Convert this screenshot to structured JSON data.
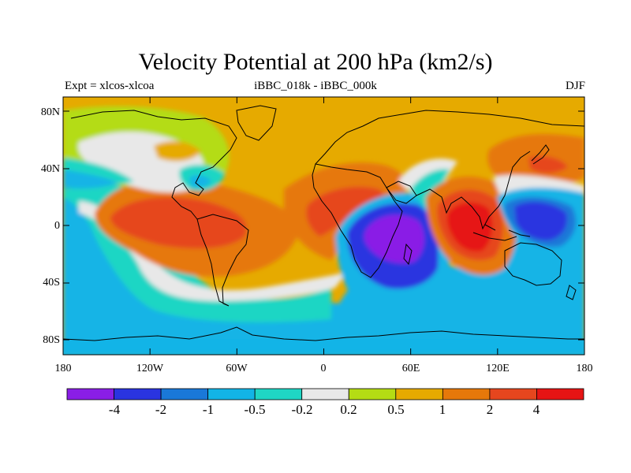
{
  "title": "Velocity Potential at 200 hPa (km2/s)",
  "subtitle_left": "Expt = xlcos-xlcoa",
  "subtitle_center": "iBBC_018k - iBBC_000k",
  "subtitle_right": "DJF",
  "lat_ticks": [
    "80N",
    "40N",
    "0",
    "40S",
    "80S"
  ],
  "lon_ticks": [
    "180",
    "120W",
    "60W",
    "0",
    "60E",
    "120E",
    "180"
  ],
  "colorbar": {
    "colors": [
      "#8a1ee6",
      "#2a34e0",
      "#1a78d8",
      "#12b4e6",
      "#1fd6c4",
      "#e8e8e8",
      "#b4dc14",
      "#e6aa00",
      "#e6780a",
      "#e6461e",
      "#e61414"
    ],
    "labels": [
      "-4",
      "-2",
      "-1",
      "-0.5",
      "-0.2",
      "0.2",
      "0.5",
      "1",
      "2",
      "4"
    ]
  },
  "colors": {
    "background": "#e6aa00",
    "coastline": "#000000"
  }
}
